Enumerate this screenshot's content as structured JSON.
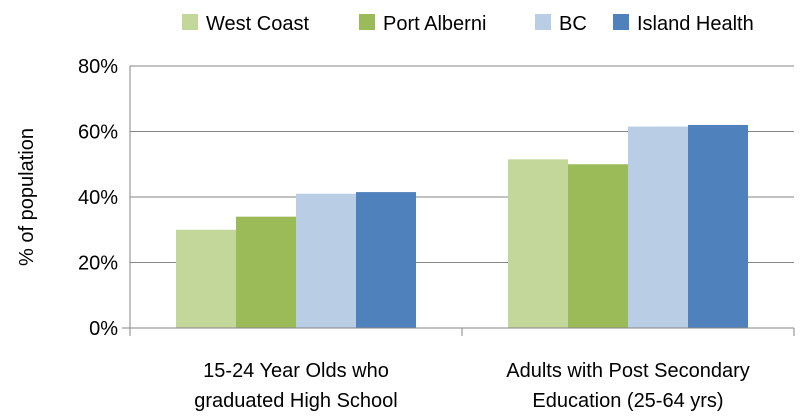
{
  "chart_data": {
    "type": "bar",
    "title": "",
    "xlabel": "",
    "ylabel": "% of population",
    "ylim": [
      0,
      80
    ],
    "yticks": [
      0,
      20,
      40,
      60,
      80
    ],
    "ytick_labels": [
      "0%",
      "20%",
      "40%",
      "60%",
      "80%"
    ],
    "grid": true,
    "legend_position": "top",
    "categories": [
      [
        "15-24 Year Olds who",
        "graduated High School"
      ],
      [
        "Adults with Post Secondary",
        "Education (25-64 yrs)"
      ]
    ],
    "series": [
      {
        "name": "West Coast",
        "color": "#c4d79b",
        "values": [
          30,
          51.5
        ]
      },
      {
        "name": "Port Alberni",
        "color": "#9bbb59",
        "values": [
          34,
          50
        ]
      },
      {
        "name": "BC",
        "color": "#b9cde5",
        "values": [
          41,
          61.5
        ]
      },
      {
        "name": "Island Health",
        "color": "#4f81bd",
        "values": [
          41.5,
          62
        ]
      }
    ]
  }
}
